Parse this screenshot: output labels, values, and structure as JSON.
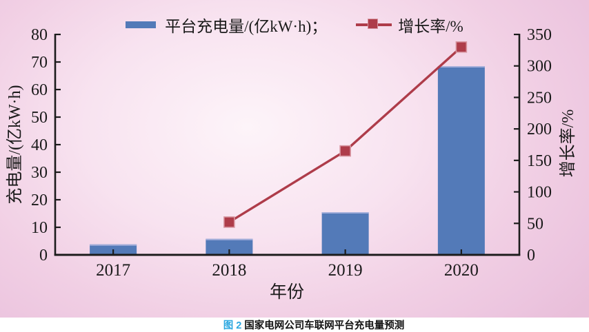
{
  "caption": {
    "fig_label": "图 2",
    "text": "国家电网公司车联网平台充电量预测",
    "fig_label_color": "#2ba7e0"
  },
  "chart_data": {
    "type": "bar",
    "title": "",
    "categories": [
      "2017",
      "2018",
      "2019",
      "2020"
    ],
    "series": [
      {
        "name": "平台充电量/(亿kW·h)",
        "type": "bar",
        "axis": "left",
        "values": [
          3.8,
          5.8,
          15.5,
          68.5
        ]
      },
      {
        "name": "增长率/%",
        "type": "line",
        "axis": "right",
        "x": [
          "2018",
          "2019",
          "2020"
        ],
        "values": [
          52,
          165,
          330
        ]
      }
    ],
    "xlabel": "年份",
    "left_axis": {
      "label": "充电量/(亿kW·h)",
      "min": 0,
      "max": 80,
      "ticks": [
        0,
        10,
        20,
        30,
        40,
        50,
        60,
        70,
        80
      ]
    },
    "right_axis": {
      "label": "增长率/%",
      "min": 0,
      "max": 350,
      "ticks": [
        0,
        50,
        100,
        150,
        200,
        250,
        300,
        350
      ]
    },
    "legend": {
      "position": "top",
      "bar_label": "平台充电量/(亿kW·h)；",
      "line_label": "增长率/%"
    },
    "grid": false,
    "colors": {
      "bar": "#537ab8",
      "bar_top_edge": "#a3aeda",
      "line": "#ae3c4a",
      "marker": "#ae3c4a",
      "marker_edge": "#d795a0",
      "axis": "#1c1c1c",
      "text": "#1a1a1a",
      "panel_edge_pink": "#e9bfda",
      "panel_center": "#fdf4f9"
    }
  }
}
